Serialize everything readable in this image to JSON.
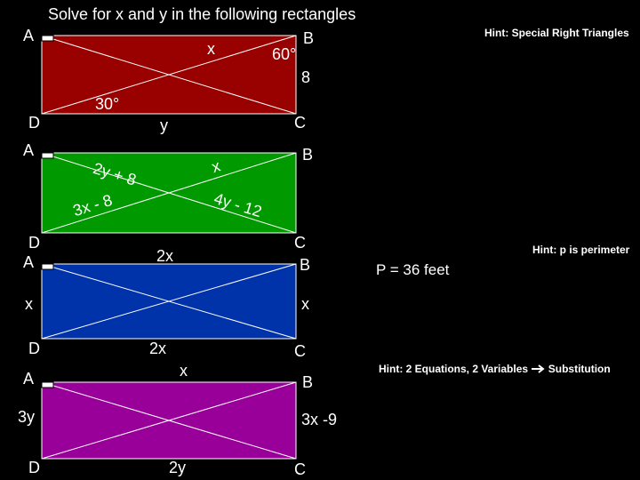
{
  "title": "Solve for x and y in the following rectangles",
  "rectangles": [
    {
      "fill": "#990000",
      "corner_labels": {
        "A": "A",
        "B": "B",
        "C": "C",
        "D": "D"
      },
      "labels": {
        "x": "x",
        "angle_b": "60°",
        "side_right": "8",
        "angle_d": "30°",
        "side_bottom": "y"
      },
      "hint": "Hint:  Special Right Triangles"
    },
    {
      "fill": "#009900",
      "corner_labels": {
        "A": "A",
        "B": "B",
        "C": "C",
        "D": "D"
      },
      "labels": {
        "seg_a": "2y + 8",
        "seg_b": "x",
        "seg_d": "3x - 8",
        "seg_c": "4y - 12"
      }
    },
    {
      "fill": "#0033aa",
      "corner_labels": {
        "A": "A",
        "B": "B",
        "C": "C",
        "D": "D"
      },
      "labels": {
        "top": "2x",
        "left": "x",
        "right": "x",
        "bottom": "2x"
      },
      "hint": "Hint:  p is perimeter",
      "given": "P = 36 feet"
    },
    {
      "fill": "#990099",
      "corner_labels": {
        "A": "A",
        "B": "B",
        "C": "C",
        "D": "D"
      },
      "labels": {
        "top": "x",
        "left": "3y",
        "right": "3x -9",
        "bottom": "2y"
      },
      "hint_prefix": "Hint:  2 Equations, 2 Variables",
      "hint_suffix": "Substitution",
      "hint_arrow": "arrow-right-icon"
    }
  ]
}
